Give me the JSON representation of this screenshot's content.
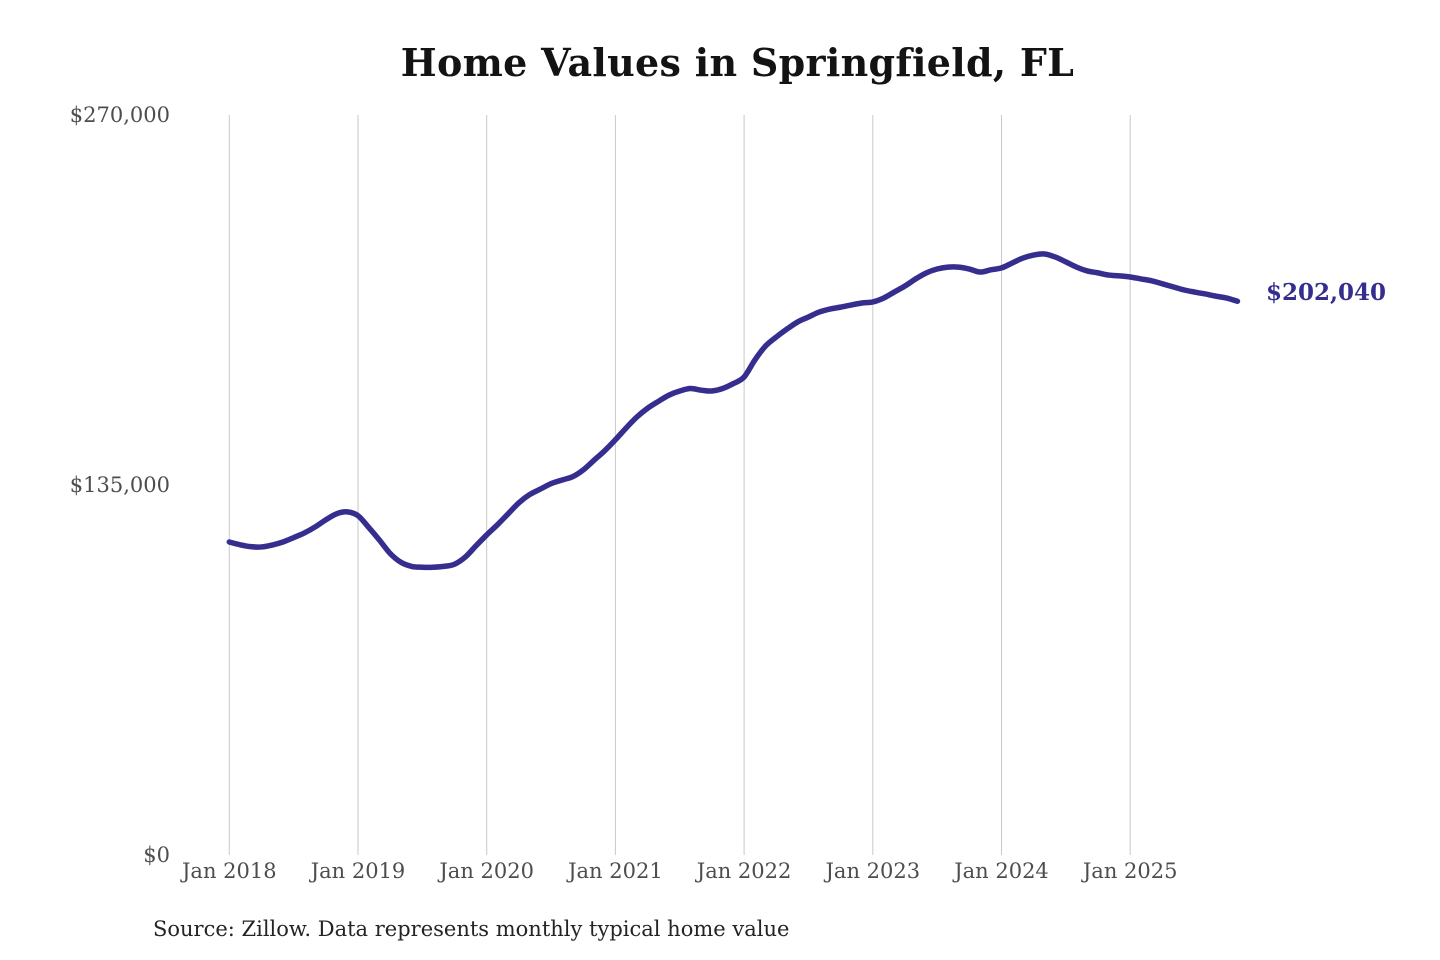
{
  "page": {
    "background": "#ffffff"
  },
  "chart": {
    "title": "Home Values in Springfield, FL",
    "source_note": "Source: Zillow. Data represents monthly typical home value",
    "end_label": "$202,040",
    "line_color": "#352e8f",
    "grid_color": "#c9c9c9",
    "axis_label_color": "#4d4d4d",
    "title_color": "#131313"
  },
  "chart_data": {
    "type": "line",
    "title": "Home Values in Springfield, FL",
    "xlabel": "",
    "ylabel": "",
    "ylim": [
      0,
      270000
    ],
    "grid": "vertical-only",
    "legend": "none",
    "source": "Source: Zillow. Data represents monthly typical home value",
    "y_ticks": [
      {
        "label": "$0",
        "value": 0
      },
      {
        "label": "$135,000",
        "value": 135000
      },
      {
        "label": "$270,000",
        "value": 270000
      }
    ],
    "x_tick_labels": [
      "Jan 2018",
      "Jan 2019",
      "Jan 2020",
      "Jan 2021",
      "Jan 2022",
      "Jan 2023",
      "Jan 2024",
      "Jan 2025"
    ],
    "x_tick_month_indices": [
      0,
      12,
      24,
      36,
      48,
      60,
      72,
      84
    ],
    "end_annotation": {
      "label": "$202,040",
      "value": 202040,
      "month": "2025-11"
    },
    "x": [
      "2018-01",
      "2018-02",
      "2018-03",
      "2018-04",
      "2018-05",
      "2018-06",
      "2018-07",
      "2018-08",
      "2018-09",
      "2018-10",
      "2018-11",
      "2018-12",
      "2019-01",
      "2019-02",
      "2019-03",
      "2019-04",
      "2019-05",
      "2019-06",
      "2019-07",
      "2019-08",
      "2019-09",
      "2019-10",
      "2019-11",
      "2019-12",
      "2020-01",
      "2020-02",
      "2020-03",
      "2020-04",
      "2020-05",
      "2020-06",
      "2020-07",
      "2020-08",
      "2020-09",
      "2020-10",
      "2020-11",
      "2020-12",
      "2021-01",
      "2021-02",
      "2021-03",
      "2021-04",
      "2021-05",
      "2021-06",
      "2021-07",
      "2021-08",
      "2021-09",
      "2021-10",
      "2021-11",
      "2021-12",
      "2022-01",
      "2022-02",
      "2022-03",
      "2022-04",
      "2022-05",
      "2022-06",
      "2022-07",
      "2022-08",
      "2022-09",
      "2022-10",
      "2022-11",
      "2022-12",
      "2023-01",
      "2023-02",
      "2023-03",
      "2023-04",
      "2023-05",
      "2023-06",
      "2023-07",
      "2023-08",
      "2023-09",
      "2023-10",
      "2023-11",
      "2023-12",
      "2024-01",
      "2024-02",
      "2024-03",
      "2024-04",
      "2024-05",
      "2024-06",
      "2024-07",
      "2024-08",
      "2024-09",
      "2024-10",
      "2024-11",
      "2024-12",
      "2025-01",
      "2025-02",
      "2025-03",
      "2025-04",
      "2025-05",
      "2025-06",
      "2025-07",
      "2025-08",
      "2025-09",
      "2025-10",
      "2025-11"
    ],
    "values": [
      114200,
      113200,
      112500,
      112400,
      113100,
      114200,
      115800,
      117500,
      119700,
      122300,
      124500,
      125200,
      123800,
      119500,
      114900,
      110000,
      106800,
      105300,
      105000,
      105000,
      105300,
      106100,
      108700,
      112800,
      116800,
      120500,
      124500,
      128500,
      131500,
      133500,
      135500,
      136800,
      138000,
      140500,
      144000,
      147500,
      151500,
      155800,
      159800,
      163000,
      165500,
      167800,
      169300,
      170200,
      169600,
      169300,
      170200,
      172000,
      174400,
      180600,
      185700,
      189000,
      191900,
      194500,
      196300,
      198100,
      199200,
      199900,
      200700,
      201400,
      201800,
      203200,
      205400,
      207600,
      210200,
      212400,
      213800,
      214500,
      214500,
      213800,
      212700,
      213500,
      214200,
      216000,
      217800,
      218900,
      219300,
      218200,
      216400,
      214500,
      213100,
      212400,
      211600,
      211300,
      210900,
      210200,
      209500,
      208400,
      207300,
      206200,
      205400,
      204700,
      203900,
      203200,
      202040
    ]
  }
}
